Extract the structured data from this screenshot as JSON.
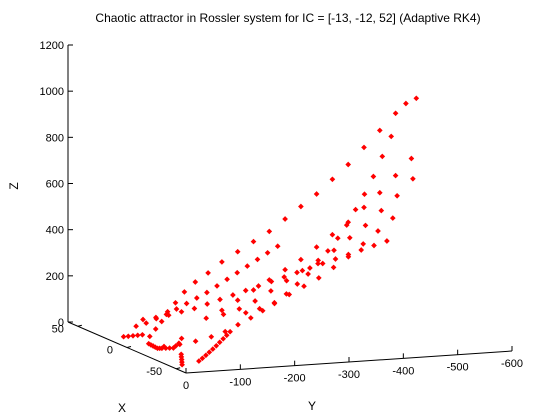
{
  "chart_data": {
    "type": "scatter",
    "projection": "3d",
    "title": "Chaotic attractor in Rossler system for IC = [-13, -12, 52] (Adaptive RK4)",
    "xlabel": "X",
    "ylabel": "Y",
    "zlabel": "Z",
    "xlim": [
      -60,
      60
    ],
    "ylim": [
      -600,
      0
    ],
    "zlim": [
      0,
      1200
    ],
    "x_ticks": [
      "50",
      "0",
      "-50"
    ],
    "y_ticks": [
      "0",
      "-100",
      "-200",
      "-300",
      "-400",
      "-500",
      "-600"
    ],
    "z_ticks": [
      "0",
      "200",
      "400",
      "600",
      "800",
      "1000",
      "1200"
    ],
    "grid": false,
    "marker": "point",
    "color": "#ff0000",
    "series": [
      {
        "points": [
          [
            0,
            -40,
            10
          ],
          [
            -5,
            -35,
            15
          ],
          [
            -10,
            -30,
            20
          ],
          [
            -15,
            -25,
            25
          ],
          [
            -20,
            -20,
            30
          ],
          [
            -25,
            -15,
            40
          ],
          [
            -30,
            -10,
            50
          ],
          [
            -35,
            -8,
            60
          ],
          [
            -40,
            -6,
            70
          ],
          [
            -45,
            -4,
            80
          ],
          [
            -48,
            -3,
            95
          ],
          [
            -50,
            -5,
            110
          ],
          [
            -50,
            -10,
            130
          ],
          [
            10,
            -60,
            20
          ],
          [
            15,
            -80,
            40
          ],
          [
            20,
            -100,
            60
          ],
          [
            25,
            -120,
            90
          ],
          [
            28,
            -140,
            120
          ],
          [
            30,
            -160,
            160
          ],
          [
            30,
            -180,
            200
          ],
          [
            28,
            -200,
            240
          ],
          [
            25,
            -220,
            290
          ],
          [
            20,
            -240,
            340
          ],
          [
            15,
            -260,
            390
          ],
          [
            10,
            -280,
            440
          ],
          [
            5,
            -300,
            500
          ],
          [
            0,
            -320,
            560
          ],
          [
            -5,
            -340,
            620
          ],
          [
            -10,
            -360,
            690
          ],
          [
            -15,
            -380,
            760
          ],
          [
            -20,
            -400,
            840
          ],
          [
            -25,
            -420,
            920
          ],
          [
            -30,
            -440,
            1000
          ],
          [
            -35,
            -450,
            1050
          ],
          [
            -40,
            -460,
            1080
          ],
          [
            -10,
            -50,
            15
          ],
          [
            -15,
            -70,
            30
          ],
          [
            -20,
            -90,
            50
          ],
          [
            -25,
            -110,
            75
          ],
          [
            -28,
            -130,
            100
          ],
          [
            -30,
            -150,
            130
          ],
          [
            -32,
            -170,
            160
          ],
          [
            -33,
            -190,
            190
          ],
          [
            -34,
            -210,
            220
          ],
          [
            -35,
            -230,
            260
          ],
          [
            -35,
            -250,
            300
          ],
          [
            -35,
            -270,
            340
          ],
          [
            -34,
            -290,
            380
          ],
          [
            -33,
            -310,
            430
          ],
          [
            -32,
            -330,
            480
          ],
          [
            -30,
            -350,
            530
          ],
          [
            -28,
            -370,
            590
          ],
          [
            -26,
            -390,
            650
          ],
          [
            -24,
            -410,
            720
          ],
          [
            -22,
            -430,
            800
          ],
          [
            -20,
            -450,
            880
          ],
          [
            30,
            -200,
            40
          ],
          [
            25,
            -220,
            80
          ],
          [
            20,
            -240,
            130
          ],
          [
            15,
            -260,
            180
          ],
          [
            10,
            -280,
            230
          ],
          [
            5,
            -300,
            280
          ],
          [
            0,
            -320,
            330
          ],
          [
            -5,
            -340,
            390
          ],
          [
            -10,
            -360,
            450
          ],
          [
            -15,
            -380,
            510
          ],
          [
            -20,
            -400,
            580
          ],
          [
            -25,
            -420,
            650
          ],
          [
            -30,
            -440,
            730
          ],
          [
            -35,
            -460,
            810
          ],
          [
            40,
            -250,
            30
          ],
          [
            35,
            -270,
            60
          ],
          [
            30,
            -290,
            100
          ],
          [
            25,
            -310,
            150
          ],
          [
            20,
            -330,
            200
          ],
          [
            15,
            -350,
            250
          ],
          [
            10,
            -370,
            300
          ],
          [
            5,
            -390,
            350
          ],
          [
            0,
            -410,
            410
          ],
          [
            -5,
            -430,
            470
          ],
          [
            -10,
            -450,
            540
          ],
          [
            -15,
            -470,
            610
          ],
          [
            -20,
            -490,
            690
          ],
          [
            45,
            -300,
            20
          ],
          [
            42,
            -320,
            40
          ],
          [
            38,
            -340,
            70
          ],
          [
            34,
            -360,
            110
          ],
          [
            30,
            -380,
            150
          ],
          [
            26,
            -400,
            190
          ],
          [
            22,
            -420,
            240
          ],
          [
            18,
            -440,
            290
          ],
          [
            14,
            -460,
            350
          ],
          [
            10,
            -480,
            410
          ],
          [
            6,
            -500,
            470
          ],
          [
            50,
            -120,
            10
          ],
          [
            48,
            -140,
            20
          ],
          [
            46,
            -160,
            30
          ],
          [
            44,
            -180,
            45
          ],
          [
            42,
            -200,
            60
          ],
          [
            40,
            -220,
            80
          ],
          [
            38,
            -240,
            100
          ],
          [
            36,
            -260,
            120
          ],
          [
            34,
            -280,
            140
          ],
          [
            32,
            -300,
            160
          ],
          [
            30,
            -320,
            180
          ],
          [
            28,
            -340,
            200
          ],
          [
            26,
            -360,
            220
          ],
          [
            24,
            -380,
            240
          ],
          [
            22,
            -400,
            260
          ],
          [
            20,
            -420,
            280
          ],
          [
            18,
            -440,
            300
          ],
          [
            16,
            -460,
            320
          ],
          [
            14,
            -480,
            340
          ],
          [
            12,
            -500,
            360
          ],
          [
            35,
            -80,
            15
          ],
          [
            33,
            -95,
            30
          ],
          [
            31,
            -110,
            50
          ],
          [
            29,
            -125,
            70
          ],
          [
            27,
            -140,
            95
          ],
          [
            25,
            -155,
            120
          ],
          [
            23,
            -170,
            145
          ],
          [
            21,
            -185,
            170
          ],
          [
            19,
            -200,
            200
          ],
          [
            17,
            -215,
            230
          ],
          [
            15,
            -230,
            260
          ],
          [
            13,
            -245,
            290
          ],
          [
            11,
            -260,
            320
          ],
          [
            9,
            -275,
            350
          ],
          [
            7,
            -290,
            380
          ],
          [
            -40,
            -60,
            5
          ],
          [
            -38,
            -70,
            12
          ],
          [
            -36,
            -80,
            20
          ],
          [
            -34,
            -90,
            28
          ],
          [
            -32,
            -100,
            36
          ],
          [
            -30,
            -110,
            45
          ],
          [
            -28,
            -120,
            55
          ],
          [
            -26,
            -130,
            65
          ],
          [
            -24,
            -140,
            75
          ],
          [
            -22,
            -150,
            85
          ],
          [
            -45,
            -20,
            5
          ],
          [
            -42,
            -25,
            10
          ],
          [
            -39,
            -30,
            15
          ],
          [
            -36,
            -35,
            20
          ],
          [
            -33,
            -40,
            25
          ],
          [
            20,
            -30,
            5
          ],
          [
            18,
            -35,
            10
          ],
          [
            16,
            -40,
            15
          ],
          [
            14,
            -45,
            20
          ],
          [
            12,
            -50,
            25
          ]
        ]
      }
    ]
  }
}
